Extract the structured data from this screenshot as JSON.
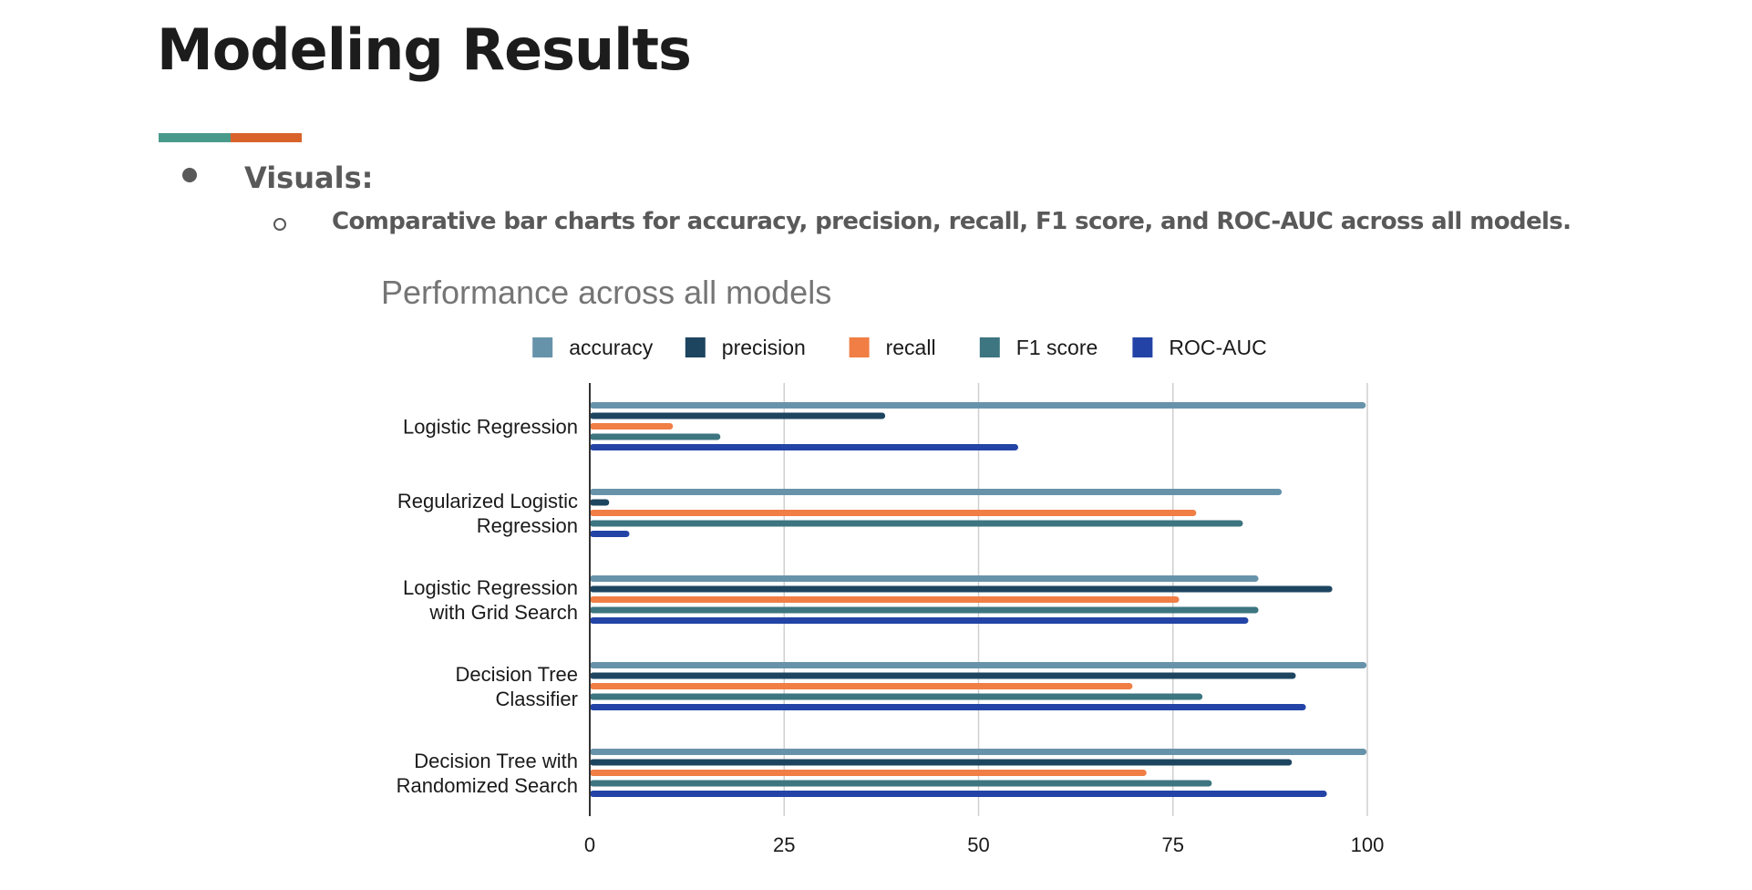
{
  "slide": {
    "title": "Modeling Results",
    "accent_colors": [
      "#4a9a8c",
      "#d9622b"
    ],
    "bullet": "Visuals:",
    "sub_bullet": "Comparative bar charts for accuracy, precision, recall, F1 score, and ROC-AUC across all models."
  },
  "chart_data": {
    "type": "bar",
    "orientation": "horizontal",
    "title": "Performance across all models",
    "xlabel": "",
    "ylabel": "",
    "xlim": [
      0,
      100
    ],
    "x_ticks": [
      0,
      25,
      50,
      75,
      100
    ],
    "grid": true,
    "legend_position": "top",
    "categories": [
      [
        "Logistic Regression"
      ],
      [
        "Regularized Logistic",
        "Regression"
      ],
      [
        "Logistic Regression",
        "with Grid Search"
      ],
      [
        "Decision Tree",
        "Classifier"
      ],
      [
        "Decision Tree with",
        "Randomized Search"
      ]
    ],
    "series": [
      {
        "name": "accuracy",
        "color": "#6793aa",
        "values": [
          99.8,
          89,
          86,
          99.9,
          99.9
        ]
      },
      {
        "name": "precision",
        "color": "#1d4560",
        "values": [
          38,
          2.5,
          95.5,
          90.8,
          90.3
        ]
      },
      {
        "name": "recall",
        "color": "#f07e45",
        "values": [
          10.7,
          78,
          75.8,
          69.8,
          71.6
        ]
      },
      {
        "name": "F1 score",
        "color": "#3d7580",
        "values": [
          16.8,
          84,
          86,
          78.8,
          80
        ]
      },
      {
        "name": "ROC-AUC",
        "color": "#2344a6",
        "values": [
          55.1,
          5.1,
          84.7,
          92.1,
          94.8
        ]
      }
    ]
  }
}
